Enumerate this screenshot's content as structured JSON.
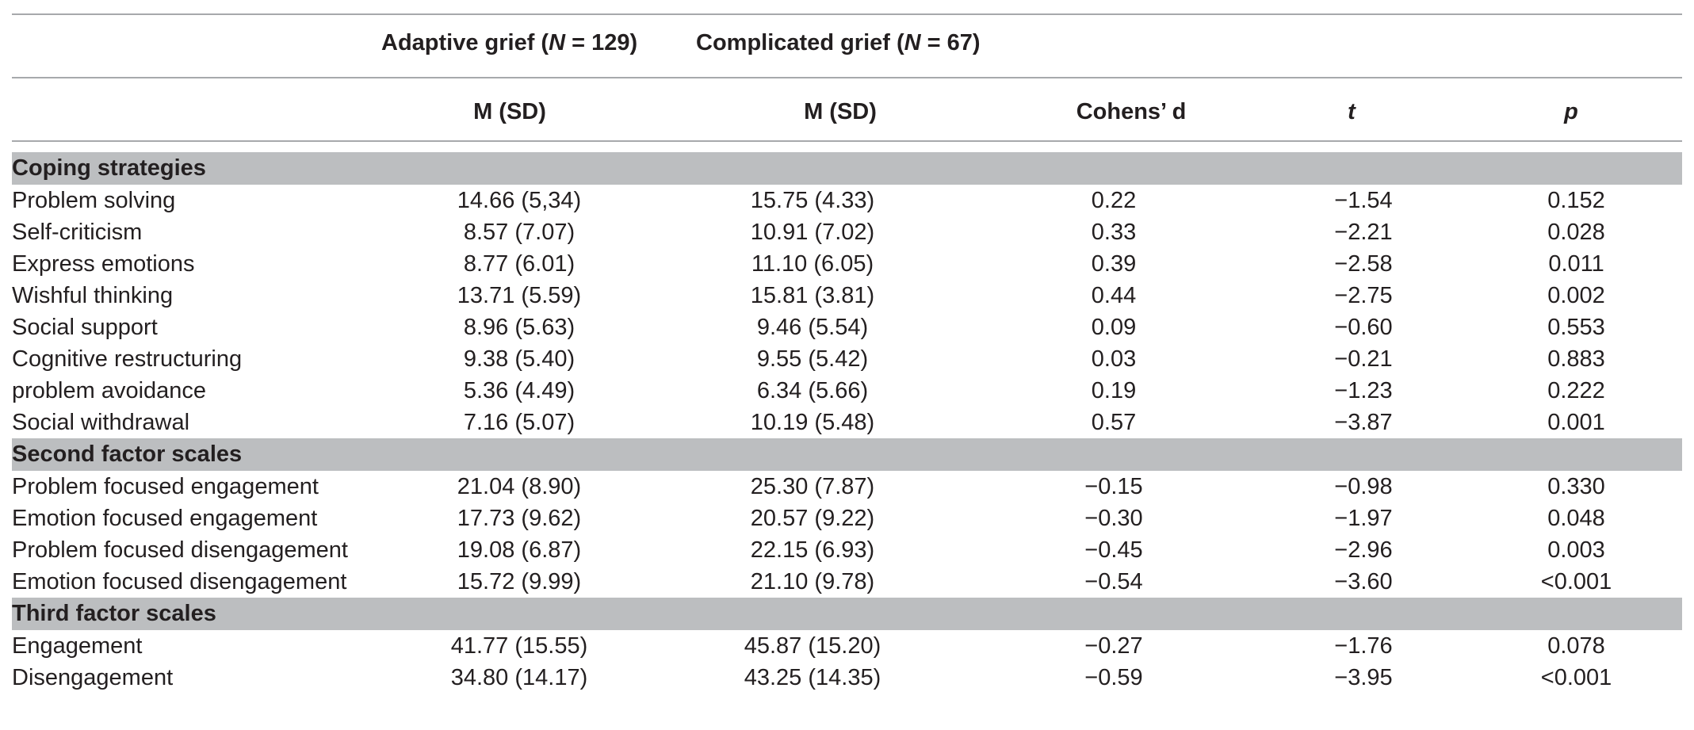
{
  "header": {
    "group1": "Adaptive grief (N = 129)",
    "group1_pre": "Adaptive grief (",
    "group1_n": "N",
    "group1_post": " = 129)",
    "group2_pre": "Complicated grief (",
    "group2_n": "N",
    "group2_post": " = 67)",
    "col_m1": "M (SD)",
    "col_m2": "M (SD)",
    "col_d": "Cohens’ d",
    "col_t": "t",
    "col_p": "p"
  },
  "sections": [
    {
      "title": "Coping strategies",
      "rows": [
        {
          "label": "Problem solving",
          "m1": "14.66 (5,34)",
          "m2": "15.75 (4.33)",
          "d": "0.22",
          "t": "−1.54",
          "p": "0.152"
        },
        {
          "label": "Self-criticism",
          "m1": "8.57 (7.07)",
          "m2": "10.91 (7.02)",
          "d": "0.33",
          "t": "−2.21",
          "p": "0.028"
        },
        {
          "label": "Express emotions",
          "m1": "8.77 (6.01)",
          "m2": "11.10 (6.05)",
          "d": "0.39",
          "t": "−2.58",
          "p": "0.011"
        },
        {
          "label": "Wishful thinking",
          "m1": "13.71 (5.59)",
          "m2": "15.81 (3.81)",
          "d": "0.44",
          "t": "−2.75",
          "p": "0.002"
        },
        {
          "label": "Social support",
          "m1": "8.96 (5.63)",
          "m2": "9.46 (5.54)",
          "d": "0.09",
          "t": "−0.60",
          "p": "0.553"
        },
        {
          "label": "Cognitive restructuring",
          "m1": "9.38 (5.40)",
          "m2": "9.55 (5.42)",
          "d": "0.03",
          "t": "−0.21",
          "p": "0.883"
        },
        {
          "label": "problem avoidance",
          "m1": "5.36 (4.49)",
          "m2": "6.34 (5.66)",
          "d": "0.19",
          "t": "−1.23",
          "p": "0.222"
        },
        {
          "label": "Social withdrawal",
          "m1": "7.16 (5.07)",
          "m2": "10.19 (5.48)",
          "d": "0.57",
          "t": "−3.87",
          "p": "0.001"
        }
      ]
    },
    {
      "title": "Second factor scales",
      "rows": [
        {
          "label": "Problem focused engagement",
          "m1": "21.04 (8.90)",
          "m2": "25.30 (7.87)",
          "d": "−0.15",
          "t": "−0.98",
          "p": "0.330"
        },
        {
          "label": "Emotion focused engagement",
          "m1": "17.73 (9.62)",
          "m2": "20.57 (9.22)",
          "d": "−0.30",
          "t": "−1.97",
          "p": "0.048"
        },
        {
          "label": "Problem focused disengagement",
          "m1": "19.08 (6.87)",
          "m2": "22.15 (6.93)",
          "d": "−0.45",
          "t": "−2.96",
          "p": "0.003"
        },
        {
          "label": "Emotion focused disengagement",
          "m1": "15.72 (9.99)",
          "m2": "21.10 (9.78)",
          "d": "−0.54",
          "t": "−3.60",
          "p": "<0.001"
        }
      ]
    },
    {
      "title": "Third factor scales",
      "rows": [
        {
          "label": "Engagement",
          "m1": "41.77 (15.55)",
          "m2": "45.87 (15.20)",
          "d": "−0.27",
          "t": "−1.76",
          "p": "0.078"
        },
        {
          "label": "Disengagement",
          "m1": "34.80 (14.17)",
          "m2": "43.25 (14.35)",
          "d": "−0.59",
          "t": "−3.95",
          "p": "<0.001"
        }
      ]
    }
  ]
}
